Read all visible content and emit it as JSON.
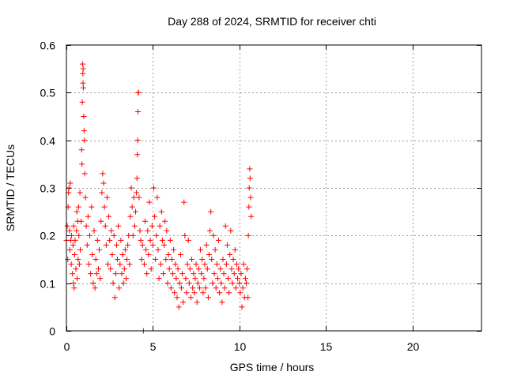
{
  "chart_data": {
    "type": "scatter",
    "title": "Day 288 of 2024, SRMTID for receiver chti",
    "xlabel": "GPS time / hours",
    "ylabel": "SRMTID / TECUs",
    "xlim": [
      0,
      24
    ],
    "ylim": [
      0,
      0.6
    ],
    "xticks": [
      0,
      5,
      10,
      15,
      20
    ],
    "xtick_labels": [
      "0",
      "5",
      "10",
      "15",
      "20"
    ],
    "yticks": [
      0,
      0.1,
      0.2,
      0.3,
      0.4,
      0.5,
      0.6
    ],
    "ytick_labels": [
      "0",
      "0.1",
      "0.2",
      "0.3",
      "0.4",
      "0.5",
      "0.6"
    ],
    "grid": true,
    "marker": "+",
    "color": "#ff0000",
    "series": [
      {
        "name": "SRMTID",
        "points": [
          [
            0.0,
            0.19
          ],
          [
            0.05,
            0.22
          ],
          [
            0.08,
            0.15
          ],
          [
            0.1,
            0.26
          ],
          [
            0.12,
            0.29
          ],
          [
            0.15,
            0.3
          ],
          [
            0.18,
            0.21
          ],
          [
            0.2,
            0.17
          ],
          [
            0.22,
            0.31
          ],
          [
            0.25,
            0.19
          ],
          [
            0.28,
            0.14
          ],
          [
            0.3,
            0.2
          ],
          [
            0.35,
            0.12
          ],
          [
            0.38,
            0.18
          ],
          [
            0.4,
            0.1
          ],
          [
            0.42,
            0.22
          ],
          [
            0.45,
            0.09
          ],
          [
            0.48,
            0.16
          ],
          [
            0.5,
            0.19
          ],
          [
            0.55,
            0.13
          ],
          [
            0.58,
            0.21
          ],
          [
            0.6,
            0.25
          ],
          [
            0.62,
            0.11
          ],
          [
            0.65,
            0.23
          ],
          [
            0.68,
            0.15
          ],
          [
            0.7,
            0.26
          ],
          [
            0.72,
            0.2
          ],
          [
            0.75,
            0.14
          ],
          [
            0.78,
            0.29
          ],
          [
            0.8,
            0.17
          ],
          [
            0.85,
            0.23
          ],
          [
            0.88,
            0.38
          ],
          [
            0.9,
            0.35
          ],
          [
            0.92,
            0.48
          ],
          [
            0.94,
            0.56
          ],
          [
            0.95,
            0.54
          ],
          [
            0.96,
            0.52
          ],
          [
            0.97,
            0.55
          ],
          [
            0.98,
            0.51
          ],
          [
            1.0,
            0.45
          ],
          [
            1.02,
            0.42
          ],
          [
            1.04,
            0.4
          ],
          [
            1.06,
            0.33
          ],
          [
            1.1,
            0.28
          ],
          [
            1.15,
            0.22
          ],
          [
            1.2,
            0.18
          ],
          [
            1.25,
            0.24
          ],
          [
            1.3,
            0.14
          ],
          [
            1.35,
            0.2
          ],
          [
            1.4,
            0.12
          ],
          [
            1.45,
            0.26
          ],
          [
            1.5,
            0.16
          ],
          [
            1.55,
            0.1
          ],
          [
            1.6,
            0.21
          ],
          [
            1.65,
            0.09
          ],
          [
            1.7,
            0.15
          ],
          [
            1.75,
            0.12
          ],
          [
            1.8,
            0.19
          ],
          [
            1.85,
            0.13
          ],
          [
            1.9,
            0.17
          ],
          [
            1.95,
            0.11
          ],
          [
            2.0,
            0.23
          ],
          [
            2.05,
            0.29
          ],
          [
            2.1,
            0.33
          ],
          [
            2.15,
            0.31
          ],
          [
            2.2,
            0.26
          ],
          [
            2.25,
            0.22
          ],
          [
            2.3,
            0.18
          ],
          [
            2.35,
            0.28
          ],
          [
            2.4,
            0.14
          ],
          [
            2.45,
            0.24
          ],
          [
            2.5,
            0.19
          ],
          [
            2.55,
            0.13
          ],
          [
            2.6,
            0.21
          ],
          [
            2.65,
            0.16
          ],
          [
            2.7,
            0.1
          ],
          [
            2.75,
            0.2
          ],
          [
            2.8,
            0.07
          ],
          [
            2.85,
            0.12
          ],
          [
            2.9,
            0.18
          ],
          [
            2.95,
            0.15
          ],
          [
            3.0,
            0.22
          ],
          [
            3.05,
            0.09
          ],
          [
            3.1,
            0.14
          ],
          [
            3.15,
            0.19
          ],
          [
            3.2,
            0.12
          ],
          [
            3.25,
            0.16
          ],
          [
            3.3,
            0.1
          ],
          [
            3.35,
            0.13
          ],
          [
            3.4,
            0.17
          ],
          [
            3.45,
            0.11
          ],
          [
            3.5,
            0.15
          ],
          [
            3.55,
            0.18
          ],
          [
            3.6,
            0.2
          ],
          [
            3.65,
            0.14
          ],
          [
            3.7,
            0.24
          ],
          [
            3.75,
            0.3
          ],
          [
            3.8,
            0.26
          ],
          [
            3.85,
            0.2
          ],
          [
            3.9,
            0.28
          ],
          [
            3.95,
            0.22
          ],
          [
            4.0,
            0.25
          ],
          [
            4.05,
            0.29
          ],
          [
            4.08,
            0.32
          ],
          [
            4.1,
            0.37
          ],
          [
            4.12,
            0.4
          ],
          [
            4.14,
            0.46
          ],
          [
            4.15,
            0.5
          ],
          [
            4.17,
            0.5
          ],
          [
            4.2,
            0.28
          ],
          [
            4.25,
            0.21
          ],
          [
            4.3,
            0.19
          ],
          [
            4.35,
            0.15
          ],
          [
            4.4,
            0.18
          ],
          [
            4.45,
            0.0
          ],
          [
            4.5,
            0.14
          ],
          [
            4.55,
            0.23
          ],
          [
            4.6,
            0.17
          ],
          [
            4.65,
            0.12
          ],
          [
            4.7,
            0.21
          ],
          [
            4.75,
            0.16
          ],
          [
            4.8,
            0.27
          ],
          [
            4.85,
            0.19
          ],
          [
            4.9,
            0.13
          ],
          [
            4.95,
            0.22
          ],
          [
            5.0,
            0.18
          ],
          [
            5.05,
            0.3
          ],
          [
            5.1,
            0.24
          ],
          [
            5.15,
            0.15
          ],
          [
            5.2,
            0.2
          ],
          [
            5.25,
            0.28
          ],
          [
            5.3,
            0.17
          ],
          [
            5.35,
            0.11
          ],
          [
            5.4,
            0.22
          ],
          [
            5.45,
            0.14
          ],
          [
            5.5,
            0.25
          ],
          [
            5.55,
            0.19
          ],
          [
            5.6,
            0.12
          ],
          [
            5.65,
            0.18
          ],
          [
            5.7,
            0.23
          ],
          [
            5.75,
            0.15
          ],
          [
            5.8,
            0.21
          ],
          [
            5.85,
            0.1
          ],
          [
            5.9,
            0.16
          ],
          [
            5.95,
            0.13
          ],
          [
            6.0,
            0.19
          ],
          [
            6.05,
            0.09
          ],
          [
            6.1,
            0.15
          ],
          [
            6.15,
            0.12
          ],
          [
            6.2,
            0.17
          ],
          [
            6.25,
            0.08
          ],
          [
            6.3,
            0.14
          ],
          [
            6.35,
            0.11
          ],
          [
            6.4,
            0.07
          ],
          [
            6.45,
            0.13
          ],
          [
            6.5,
            0.05
          ],
          [
            6.55,
            0.1
          ],
          [
            6.6,
            0.16
          ],
          [
            6.65,
            0.09
          ],
          [
            6.7,
            0.12
          ],
          [
            6.75,
            0.06
          ],
          [
            6.8,
            0.27
          ],
          [
            6.85,
            0.2
          ],
          [
            6.9,
            0.11
          ],
          [
            6.95,
            0.08
          ],
          [
            7.0,
            0.14
          ],
          [
            7.05,
            0.19
          ],
          [
            7.1,
            0.1
          ],
          [
            7.15,
            0.13
          ],
          [
            7.2,
            0.07
          ],
          [
            7.25,
            0.15
          ],
          [
            7.3,
            0.09
          ],
          [
            7.35,
            0.12
          ],
          [
            7.4,
            0.08
          ],
          [
            7.45,
            0.11
          ],
          [
            7.5,
            0.14
          ],
          [
            7.55,
            0.06
          ],
          [
            7.6,
            0.1
          ],
          [
            7.65,
            0.13
          ],
          [
            7.7,
            0.09
          ],
          [
            7.75,
            0.17
          ],
          [
            7.8,
            0.12
          ],
          [
            7.85,
            0.15
          ],
          [
            7.9,
            0.08
          ],
          [
            7.95,
            0.11
          ],
          [
            8.0,
            0.14
          ],
          [
            8.05,
            0.09
          ],
          [
            8.1,
            0.18
          ],
          [
            8.15,
            0.13
          ],
          [
            8.2,
            0.07
          ],
          [
            8.25,
            0.16
          ],
          [
            8.3,
            0.21
          ],
          [
            8.35,
            0.25
          ],
          [
            8.4,
            0.15
          ],
          [
            8.45,
            0.1
          ],
          [
            8.5,
            0.2
          ],
          [
            8.55,
            0.12
          ],
          [
            8.6,
            0.17
          ],
          [
            8.65,
            0.09
          ],
          [
            8.7,
            0.14
          ],
          [
            8.75,
            0.11
          ],
          [
            8.8,
            0.19
          ],
          [
            8.85,
            0.08
          ],
          [
            8.9,
            0.13
          ],
          [
            8.95,
            0.1
          ],
          [
            9.0,
            0.06
          ],
          [
            9.05,
            0.15
          ],
          [
            9.1,
            0.12
          ],
          [
            9.15,
            0.09
          ],
          [
            9.2,
            0.22
          ],
          [
            9.25,
            0.14
          ],
          [
            9.3,
            0.18
          ],
          [
            9.35,
            0.11
          ],
          [
            9.4,
            0.08
          ],
          [
            9.45,
            0.16
          ],
          [
            9.5,
            0.21
          ],
          [
            9.55,
            0.13
          ],
          [
            9.6,
            0.1
          ],
          [
            9.65,
            0.15
          ],
          [
            9.7,
            0.12
          ],
          [
            9.75,
            0.17
          ],
          [
            9.8,
            0.09
          ],
          [
            9.85,
            0.14
          ],
          [
            9.9,
            0.11
          ],
          [
            9.95,
            0.13
          ],
          [
            10.0,
            0.1
          ],
          [
            10.05,
            0.08
          ],
          [
            10.1,
            0.12
          ],
          [
            10.15,
            0.05
          ],
          [
            10.2,
            0.09
          ],
          [
            10.25,
            0.14
          ],
          [
            10.3,
            0.07
          ],
          [
            10.35,
            0.11
          ],
          [
            10.4,
            0.1
          ],
          [
            10.45,
            0.13
          ],
          [
            10.5,
            0.07
          ],
          [
            10.52,
            0.2
          ],
          [
            10.55,
            0.26
          ],
          [
            10.57,
            0.3
          ],
          [
            10.6,
            0.34
          ],
          [
            10.62,
            0.32
          ],
          [
            10.65,
            0.28
          ],
          [
            10.68,
            0.24
          ]
        ]
      }
    ]
  }
}
